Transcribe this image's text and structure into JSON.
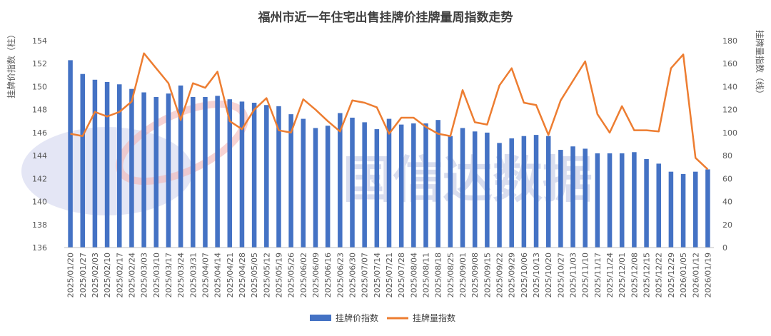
{
  "chart_data": {
    "type": "bar+line",
    "title": "福州市近一年住宅出售挂牌价挂牌量周指数走势",
    "ylabel_left": "挂牌价指数（柱）",
    "ylabel_right": "挂牌量指数（线）",
    "ylim_left": [
      136,
      154
    ],
    "ylim_right": [
      0,
      180
    ],
    "yticks_left": [
      136,
      138,
      140,
      142,
      144,
      146,
      148,
      150,
      152,
      154
    ],
    "yticks_right": [
      0,
      20,
      40,
      60,
      80,
      100,
      120,
      140,
      160,
      180
    ],
    "grid": false,
    "legend_position": "bottom",
    "categories": [
      "2025/01/20",
      "2025/01/27",
      "2025/02/03",
      "2025/02/10",
      "2025/02/17",
      "2025/02/24",
      "2025/03/03",
      "2025/03/10",
      "2025/03/17",
      "2025/03/24",
      "2025/03/31",
      "2025/04/07",
      "2025/04/14",
      "2025/04/21",
      "2025/04/28",
      "2025/05/05",
      "2025/05/12",
      "2025/05/19",
      "2025/05/26",
      "2025/06/02",
      "2025/06/09",
      "2025/06/16",
      "2025/06/23",
      "2025/06/30",
      "2025/07/07",
      "2025/07/14",
      "2025/07/21",
      "2025/07/28",
      "2025/08/04",
      "2025/08/11",
      "2025/08/18",
      "2025/08/25",
      "2025/09/01",
      "2025/09/08",
      "2025/09/15",
      "2025/09/22",
      "2025/09/29",
      "2025/10/06",
      "2025/10/13",
      "2025/10/20",
      "2025/10/27",
      "2025/11/03",
      "2025/11/10",
      "2025/11/17",
      "2025/11/24",
      "2025/12/01",
      "2025/12/08",
      "2025/12/15",
      "2025/12/22",
      "2025/12/29",
      "2026/01/05",
      "2026/01/12",
      "2026/01/19"
    ],
    "series": [
      {
        "name": "挂牌价指数",
        "type": "bar",
        "axis": "left",
        "color": "#4472C4",
        "values": [
          152.3,
          151.1,
          150.6,
          150.4,
          150.2,
          149.8,
          149.5,
          149.1,
          149.4,
          150.1,
          149.1,
          149.1,
          149.2,
          148.9,
          148.7,
          148.6,
          148.4,
          148.3,
          147.6,
          147.2,
          146.4,
          146.6,
          147.7,
          147.3,
          146.9,
          146.3,
          147.2,
          146.7,
          146.8,
          146.8,
          147.1,
          145.7,
          146.4,
          146.1,
          146.0,
          145.1,
          145.5,
          145.7,
          145.8,
          145.7,
          144.5,
          144.8,
          144.6,
          144.2,
          144.2,
          144.2,
          144.3,
          143.7,
          143.3,
          142.6,
          142.4,
          142.6,
          142.8
        ]
      },
      {
        "name": "挂牌量指数",
        "type": "line",
        "axis": "right",
        "color": "#ED7D31",
        "values": [
          99,
          97,
          118,
          114,
          118,
          127,
          169,
          156,
          143,
          111,
          143,
          139,
          153,
          110,
          103,
          120,
          130,
          102,
          100,
          129,
          120,
          110,
          101,
          128,
          126,
          122,
          99,
          113,
          113,
          105,
          99,
          97,
          137,
          109,
          107,
          141,
          156,
          126,
          124,
          98,
          128,
          145,
          162,
          116,
          100,
          123,
          102,
          102,
          101,
          156,
          168,
          78,
          68
        ]
      }
    ]
  },
  "watermark": {
    "text": "国信达数据",
    "color": "#C9CFE8"
  }
}
